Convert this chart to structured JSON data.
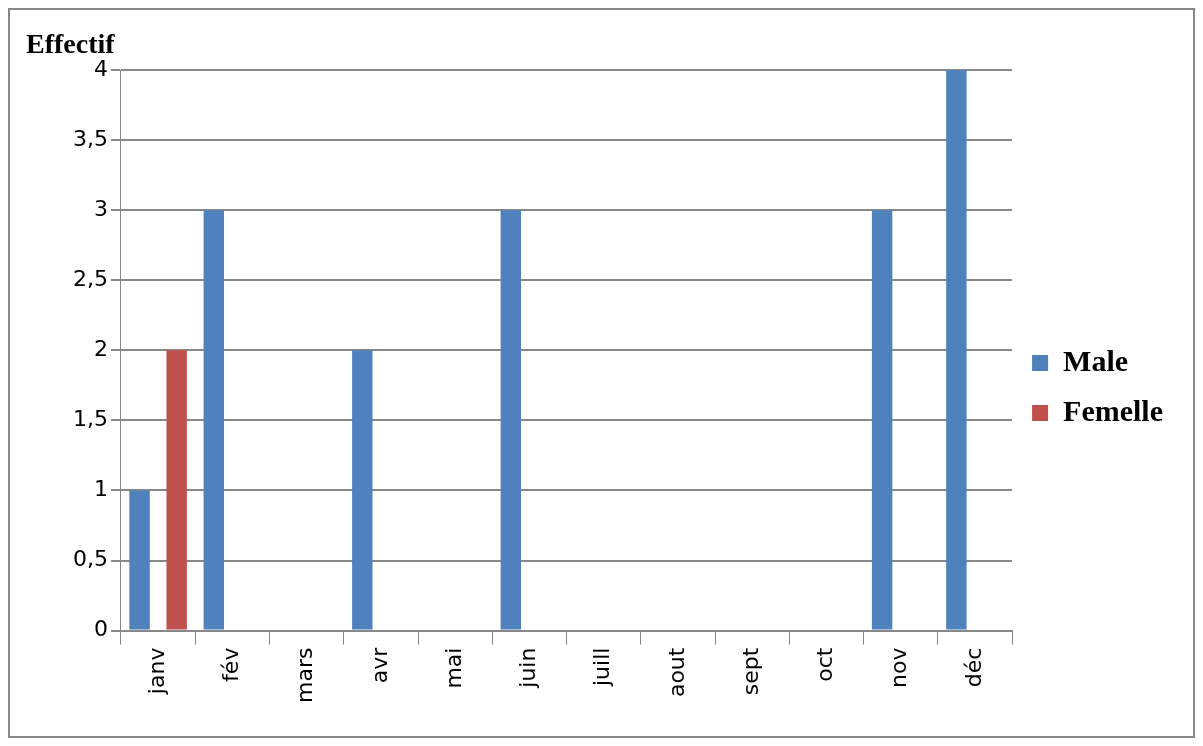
{
  "chart_data": {
    "type": "bar",
    "ylabel": "Effectif",
    "categories": [
      "janv",
      "fév",
      "mars",
      "avr",
      "mai",
      "juin",
      "juill",
      "aout",
      "sept",
      "oct",
      "nov",
      "déc"
    ],
    "series": [
      {
        "name": "Male",
        "color": "#4f81bd",
        "values": [
          1,
          3,
          0,
          2,
          0,
          3,
          0,
          0,
          0,
          0,
          3,
          4
        ]
      },
      {
        "name": "Femelle",
        "color": "#c0504d",
        "values": [
          2,
          0,
          0,
          0,
          0,
          0,
          0,
          0,
          0,
          0,
          0,
          0
        ]
      }
    ],
    "ylim": [
      0,
      4
    ],
    "yticks": [
      0,
      {
        "value": 0.5,
        "label": "0,5"
      },
      1,
      {
        "value": 1.5,
        "label": "1,5"
      },
      2,
      {
        "value": 2.5,
        "label": "2,5"
      },
      3,
      {
        "value": 3.5,
        "label": "3,5"
      },
      4
    ],
    "grid": "y",
    "legend": "right"
  }
}
